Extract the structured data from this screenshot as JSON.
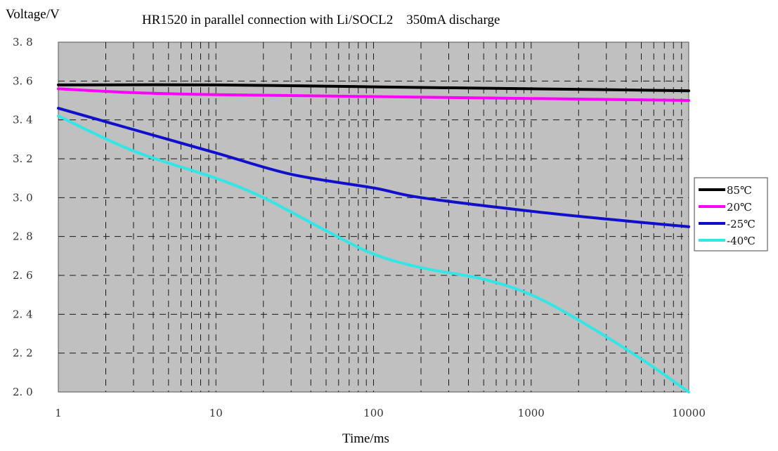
{
  "chart_data": {
    "type": "line",
    "title": "HR1520 in parallel connection with Li/SOCL2    350mA discharge",
    "xlabel": "Time/ms",
    "ylabel": "Voltage/V",
    "x_scale": "log",
    "xlim": [
      1,
      10000
    ],
    "ylim": [
      2.0,
      3.8
    ],
    "x_ticks": [
      "1",
      "10",
      "100",
      "1000",
      "10000"
    ],
    "y_ticks": [
      "3.8",
      "3.6",
      "3.4",
      "3.2",
      "3.0",
      "2.8",
      "2.6",
      "2.4",
      "2.2",
      "2.0"
    ],
    "grid": true,
    "grid_style": "dashed",
    "plot_background": "#c0c0c0",
    "legend_position": "right",
    "series": [
      {
        "name": "85℃",
        "color": "#000000",
        "points": [
          [
            1,
            3.58
          ],
          [
            10,
            3.58
          ],
          [
            100,
            3.57
          ],
          [
            1000,
            3.56
          ],
          [
            10000,
            3.55
          ]
        ]
      },
      {
        "name": "20℃",
        "color": "#ff00ff",
        "points": [
          [
            1,
            3.56
          ],
          [
            3,
            3.54
          ],
          [
            10,
            3.53
          ],
          [
            100,
            3.52
          ],
          [
            1000,
            3.51
          ],
          [
            10000,
            3.5
          ]
        ]
      },
      {
        "name": "-25℃",
        "color": "#1010cc",
        "points": [
          [
            1,
            3.46
          ],
          [
            3,
            3.35
          ],
          [
            10,
            3.23
          ],
          [
            30,
            3.12
          ],
          [
            100,
            3.05
          ],
          [
            200,
            3.0
          ],
          [
            1000,
            2.93
          ],
          [
            3000,
            2.89
          ],
          [
            10000,
            2.85
          ]
        ]
      },
      {
        "name": "-40℃",
        "color": "#33e6e6",
        "points": [
          [
            1,
            3.42
          ],
          [
            3,
            3.24
          ],
          [
            10,
            3.1
          ],
          [
            20,
            3.0
          ],
          [
            50,
            2.83
          ],
          [
            100,
            2.71
          ],
          [
            200,
            2.64
          ],
          [
            500,
            2.58
          ],
          [
            1000,
            2.5
          ],
          [
            2000,
            2.37
          ],
          [
            5000,
            2.17
          ],
          [
            10000,
            2.0
          ]
        ]
      }
    ]
  }
}
